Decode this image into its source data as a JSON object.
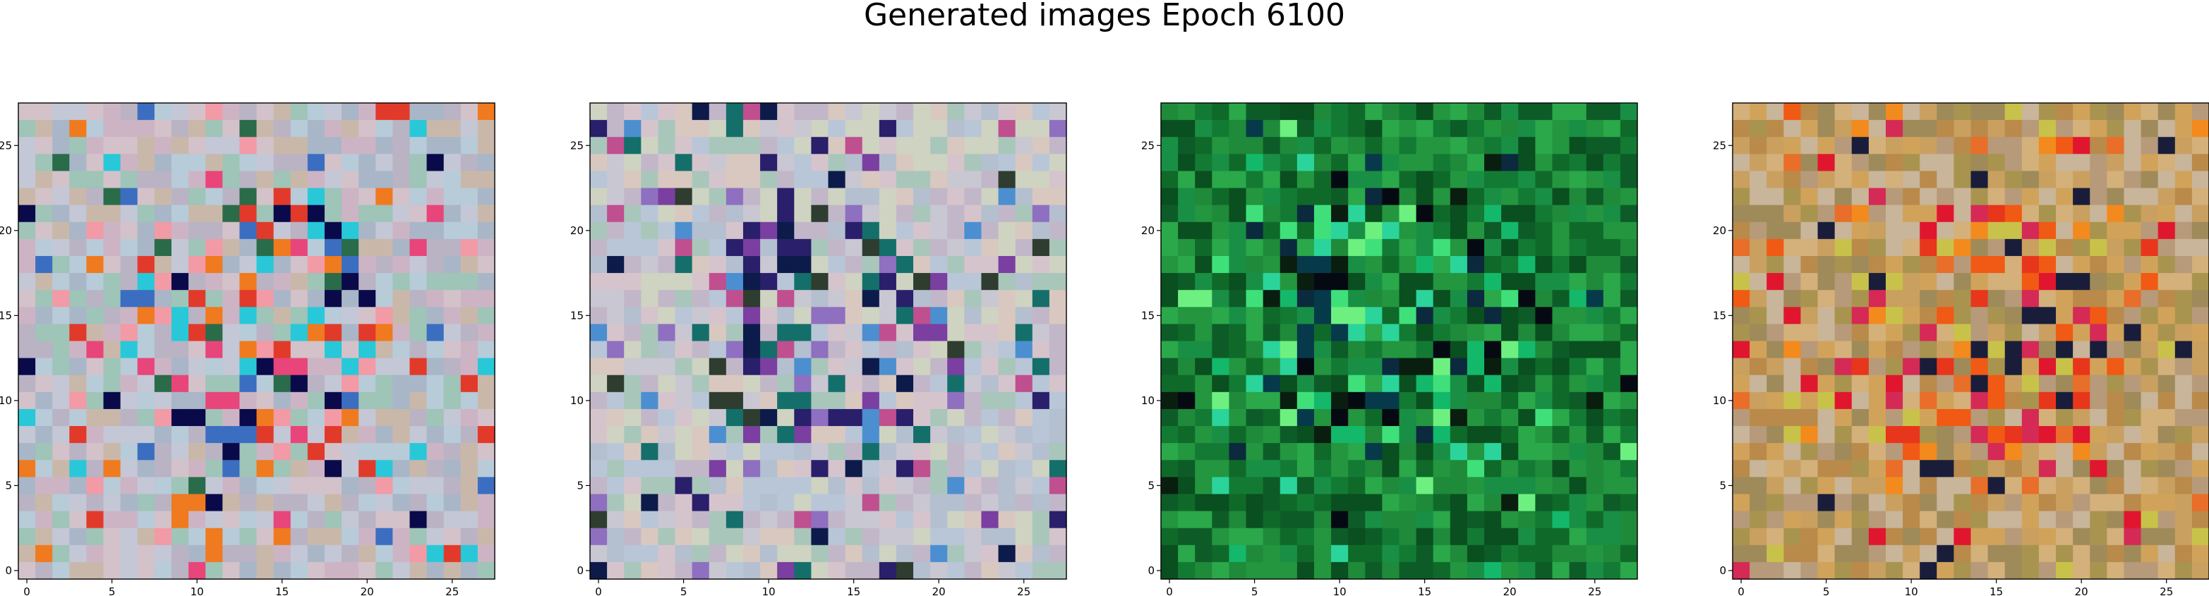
{
  "title": "Generated images Epoch 6100",
  "chart_data": [
    {
      "type": "heatmap",
      "grid": [
        28,
        28
      ],
      "xlim": [
        -0.5,
        27.5
      ],
      "ylim": [
        27.5,
        -0.5
      ],
      "xticks": [
        0,
        5,
        10,
        15,
        20,
        25
      ],
      "yticks": [
        0,
        5,
        10,
        15,
        20,
        25
      ],
      "xtick_labels": [
        "0",
        "5",
        "10",
        "15",
        "20",
        "25"
      ],
      "ytick_labels": [
        "0",
        "5",
        "10",
        "15",
        "20",
        "25"
      ],
      "palette": [
        "#b9b3c4",
        "#c4c7d6",
        "#a8b6c8",
        "#d3c2c9",
        "#9fc4b8",
        "#c9b8a9",
        "#b7cbd9",
        "#cdb4c4"
      ],
      "accents": [
        "#e13a2b",
        "#f07a1f",
        "#e8457a",
        "#f29aa6",
        "#3b6ec0",
        "#29c8d8",
        "#0a0a4a",
        "#2a6b4a"
      ],
      "center": [
        13.5,
        12.5
      ]
    },
    {
      "type": "heatmap",
      "grid": [
        28,
        28
      ],
      "xlim": [
        -0.5,
        27.5
      ],
      "ylim": [
        27.5,
        -0.5
      ],
      "xticks": [
        0,
        5,
        10,
        15,
        20,
        25
      ],
      "yticks": [
        0,
        5,
        10,
        15,
        20,
        25
      ],
      "xtick_labels": [
        "0",
        "5",
        "10",
        "15",
        "20",
        "25"
      ],
      "ytick_labels": [
        "0",
        "5",
        "10",
        "15",
        "20",
        "25"
      ],
      "palette": [
        "#c9c7d2",
        "#b8c6d8",
        "#d6c4cc",
        "#a9c6bb",
        "#c2b7c8",
        "#cfd3c1",
        "#b4bfcf",
        "#d9c8c0"
      ],
      "accents": [
        "#2a1f6b",
        "#146f6a",
        "#7a3fa0",
        "#0d1b4a",
        "#4c8fd0",
        "#c04f8f",
        "#2e3d2f",
        "#8f6fc0"
      ],
      "center": [
        13.5,
        13.5
      ]
    },
    {
      "type": "heatmap",
      "grid": [
        28,
        28
      ],
      "xlim": [
        -0.5,
        27.5
      ],
      "ylim": [
        27.5,
        -0.5
      ],
      "xticks": [
        0,
        5,
        10,
        15,
        20,
        25
      ],
      "yticks": [
        0,
        5,
        10,
        15,
        20,
        25
      ],
      "xtick_labels": [
        "0",
        "5",
        "10",
        "15",
        "20",
        "25"
      ],
      "ytick_labels": [
        "0",
        "5",
        "10",
        "15",
        "20",
        "25"
      ],
      "palette": [
        "#1f8a3a",
        "#0f6a2a",
        "#2aa84a",
        "#137a34",
        "#0a4f1f",
        "#23963f",
        "#198f45",
        "#0d5c28"
      ],
      "accents": [
        "#050a12",
        "#0b2a3d",
        "#3fe07a",
        "#2bd49a",
        "#6ef080",
        "#0a1e10",
        "#14b86a",
        "#063a4a"
      ],
      "center": [
        12.5,
        12.5
      ]
    },
    {
      "type": "heatmap",
      "grid": [
        28,
        28
      ],
      "xlim": [
        -0.5,
        27.5
      ],
      "ylim": [
        27.5,
        -0.5
      ],
      "xticks": [
        0,
        5,
        10,
        15,
        20,
        25
      ],
      "yticks": [
        0,
        5,
        10,
        15,
        20,
        25
      ],
      "xtick_labels": [
        "0",
        "5",
        "10",
        "15",
        "20",
        "25"
      ],
      "ytick_labels": [
        "0",
        "5",
        "10",
        "15",
        "20",
        "25"
      ],
      "palette": [
        "#c9a060",
        "#b98a4a",
        "#d4b07a",
        "#a9944f",
        "#c8b59a",
        "#b79a7a",
        "#d1a35a",
        "#9f8a5a"
      ],
      "accents": [
        "#e8361c",
        "#f05a14",
        "#e0162f",
        "#f28a1e",
        "#d42a55",
        "#c8c24a",
        "#1a1d3a",
        "#e86e2a"
      ],
      "center": [
        13.5,
        13.5
      ]
    }
  ]
}
